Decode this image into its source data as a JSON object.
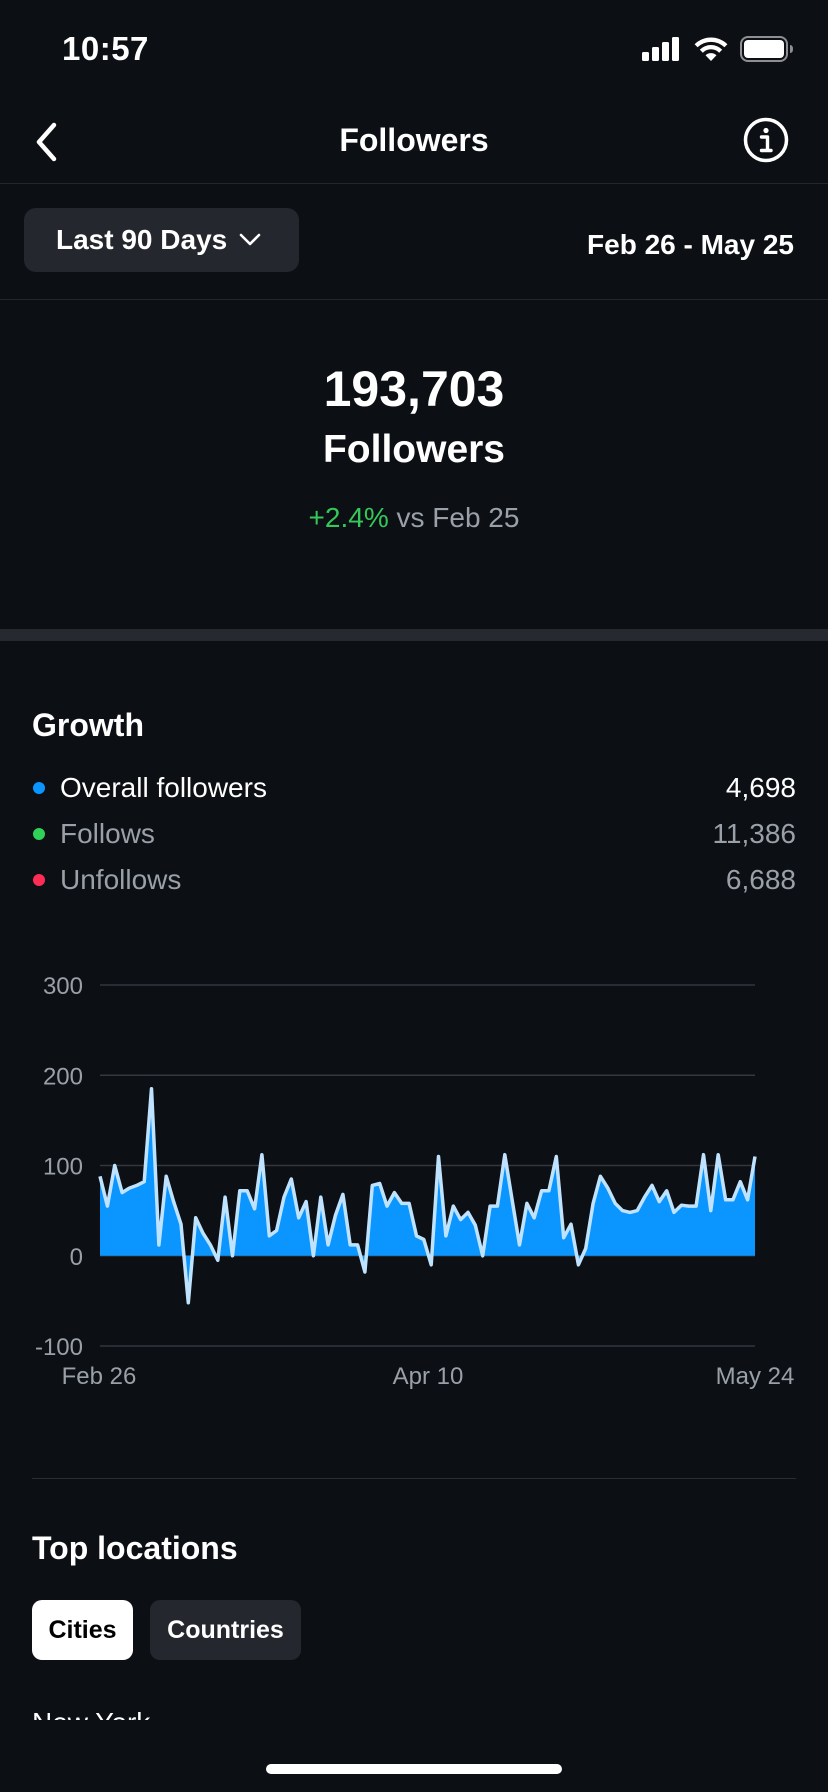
{
  "status_bar": {
    "time": "10:57",
    "icons": [
      "cellular-signal-icon",
      "wifi-icon",
      "battery-icon"
    ]
  },
  "nav": {
    "title": "Followers",
    "back_icon": "chevron-left-icon",
    "info_icon": "info-circle-icon"
  },
  "filter": {
    "range_label": "Last 90 Days",
    "range_icon": "chevron-down-icon",
    "date_range": "Feb 26 - May 25"
  },
  "summary": {
    "count": "193,703",
    "label": "Followers",
    "change_pct": "+2.4%",
    "change_suffix": "vs Feb 25"
  },
  "growth": {
    "title": "Growth",
    "legend": [
      {
        "label": "Overall followers",
        "value": "4,698",
        "color": "#0a95ff"
      },
      {
        "label": "Follows",
        "value": "11,386",
        "color": "#30d158"
      },
      {
        "label": "Unfollows",
        "value": "6,688",
        "color": "#ff2d55"
      }
    ]
  },
  "chart_data": {
    "type": "area",
    "series": [
      {
        "values": [
          88,
          55,
          100,
          70,
          75,
          78,
          82,
          185,
          12,
          88,
          60,
          35,
          -52,
          42,
          25,
          12,
          -5,
          65,
          0,
          72,
          72,
          52,
          112,
          22,
          28,
          65,
          85,
          42,
          60,
          0,
          65,
          12,
          45,
          68,
          12,
          12,
          -18,
          78,
          80,
          55,
          70,
          58,
          58,
          22,
          18,
          -10,
          110,
          22,
          55,
          40,
          48,
          34,
          0,
          55,
          55,
          112,
          62,
          12,
          58,
          42,
          72,
          72,
          110,
          20,
          35,
          -10,
          8,
          58,
          88,
          75,
          58,
          50,
          48,
          50,
          65,
          78,
          60,
          72,
          48,
          56,
          55,
          55,
          112,
          50,
          112,
          62,
          62,
          82,
          62,
          110
        ]
      }
    ],
    "x_tick_labels": [
      "Feb 26",
      "Apr 10",
      "May 24"
    ],
    "y_ticks": [
      300,
      200,
      100,
      0,
      -100
    ],
    "ylim": [
      -100,
      300
    ],
    "colors": {
      "fill": "#0a95ff",
      "line": "#bfe3ff",
      "grid": "#33373e",
      "tick_text": "#9aa0a8"
    },
    "grid": true
  },
  "top_locations": {
    "title": "Top locations",
    "tabs": [
      "Cities",
      "Countries"
    ],
    "first_item": "New York"
  }
}
